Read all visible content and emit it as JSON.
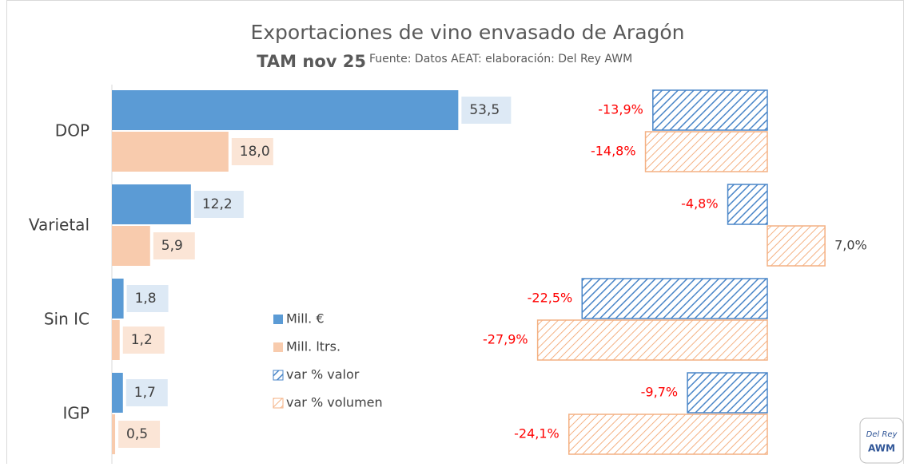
{
  "chart_data": {
    "type": "bar",
    "orientation": "horizontal",
    "title": "Exportaciones de vino envasado de Aragón",
    "subtitle": "TAM nov 25",
    "source": "Fuente: Datos AEAT: elaboración: Del Rey AWM",
    "logo": [
      "Del Rey",
      "AWM"
    ],
    "categories": [
      "DOP",
      "Varietal",
      "Sin IC",
      "IGP"
    ],
    "xlim": [
      0,
      60
    ],
    "x2lim": [
      -30,
      10
    ],
    "series": [
      {
        "name": "Mill. €",
        "color": "#5b9bd5",
        "label_bg": "#dde9f5",
        "values": [
          53.5,
          12.2,
          1.8,
          1.7
        ],
        "value_labels": [
          "53,5",
          "12,2",
          "1,8",
          "1,7"
        ]
      },
      {
        "name": "Mill. ltrs.",
        "color": "#f8cbad",
        "label_bg": "#fbe5d6",
        "values": [
          18.0,
          5.9,
          1.2,
          0.5
        ],
        "value_labels": [
          "18,0",
          "5,9",
          "1,2",
          "0,5"
        ]
      },
      {
        "name": "var % valor",
        "color": "#4a86c8",
        "hatch": true,
        "axis": "x2",
        "values": [
          -13.9,
          -4.8,
          -22.5,
          -9.7
        ],
        "value_labels": [
          "-13,9%",
          "-4,8%",
          "-22,5%",
          "-9,7%"
        ]
      },
      {
        "name": "var % volumen",
        "color": "#f4b183",
        "hatch": true,
        "axis": "x2",
        "values": [
          -14.8,
          7.0,
          -27.9,
          -24.1
        ],
        "value_labels": [
          "-14,8%",
          "7,0%",
          "-27,9%",
          "-24,1%"
        ]
      }
    ]
  }
}
